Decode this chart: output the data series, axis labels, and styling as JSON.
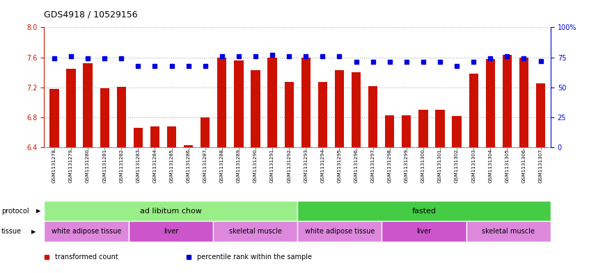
{
  "title": "GDS4918 / 10529156",
  "samples": [
    "GSM1131278",
    "GSM1131279",
    "GSM1131280",
    "GSM1131281",
    "GSM1131282",
    "GSM1131283",
    "GSM1131284",
    "GSM1131285",
    "GSM1131286",
    "GSM1131287",
    "GSM1131288",
    "GSM1131289",
    "GSM1131290",
    "GSM1131291",
    "GSM1131292",
    "GSM1131293",
    "GSM1131294",
    "GSM1131295",
    "GSM1131296",
    "GSM1131297",
    "GSM1131298",
    "GSM1131299",
    "GSM1131300",
    "GSM1131301",
    "GSM1131302",
    "GSM1131303",
    "GSM1131304",
    "GSM1131305",
    "GSM1131306",
    "GSM1131307"
  ],
  "bar_values": [
    7.18,
    7.45,
    7.52,
    7.19,
    7.21,
    6.66,
    6.68,
    6.68,
    6.43,
    6.8,
    7.6,
    7.56,
    7.43,
    7.6,
    7.27,
    7.6,
    7.27,
    7.43,
    7.4,
    7.22,
    6.83,
    6.83,
    6.9,
    6.9,
    6.82,
    7.38,
    7.58,
    7.63,
    7.6,
    7.25
  ],
  "percentile_values": [
    74,
    76,
    74,
    74,
    74,
    68,
    68,
    68,
    68,
    68,
    76,
    76,
    76,
    77,
    76,
    76,
    76,
    76,
    71,
    71,
    71,
    71,
    71,
    71,
    68,
    71,
    74,
    76,
    74,
    72
  ],
  "ylim_left": [
    6.4,
    8.0
  ],
  "ylim_right": [
    0,
    100
  ],
  "yticks_left": [
    6.4,
    6.8,
    7.2,
    7.6,
    8.0
  ],
  "yticks_right": [
    0,
    25,
    50,
    75,
    100
  ],
  "ytick_labels_right": [
    "0",
    "25",
    "50",
    "75",
    "100%"
  ],
  "bar_color": "#cc1100",
  "percentile_color": "#0000dd",
  "grid_color": "#aaaaaa",
  "protocol_groups": [
    {
      "label": "ad libitum chow",
      "start": 0,
      "end": 14,
      "color": "#99ee88"
    },
    {
      "label": "fasted",
      "start": 15,
      "end": 29,
      "color": "#44cc44"
    }
  ],
  "tissue_groups": [
    {
      "label": "white adipose tissue",
      "start": 0,
      "end": 4,
      "color": "#dd88dd"
    },
    {
      "label": "liver",
      "start": 5,
      "end": 9,
      "color": "#cc55cc"
    },
    {
      "label": "skeletal muscle",
      "start": 10,
      "end": 14,
      "color": "#dd88dd"
    },
    {
      "label": "white adipose tissue",
      "start": 15,
      "end": 19,
      "color": "#dd88dd"
    },
    {
      "label": "liver",
      "start": 20,
      "end": 24,
      "color": "#cc55cc"
    },
    {
      "label": "skeletal muscle",
      "start": 25,
      "end": 29,
      "color": "#dd88dd"
    }
  ],
  "legend_items": [
    {
      "label": "transformed count",
      "color": "#cc1100"
    },
    {
      "label": "percentile rank within the sample",
      "color": "#0000dd"
    }
  ],
  "bar_width": 0.55,
  "xtick_bg_color": "#d8d8d8",
  "spine_color": "#888888",
  "left_ycolor": "#cc1100",
  "right_ycolor": "#0000dd"
}
